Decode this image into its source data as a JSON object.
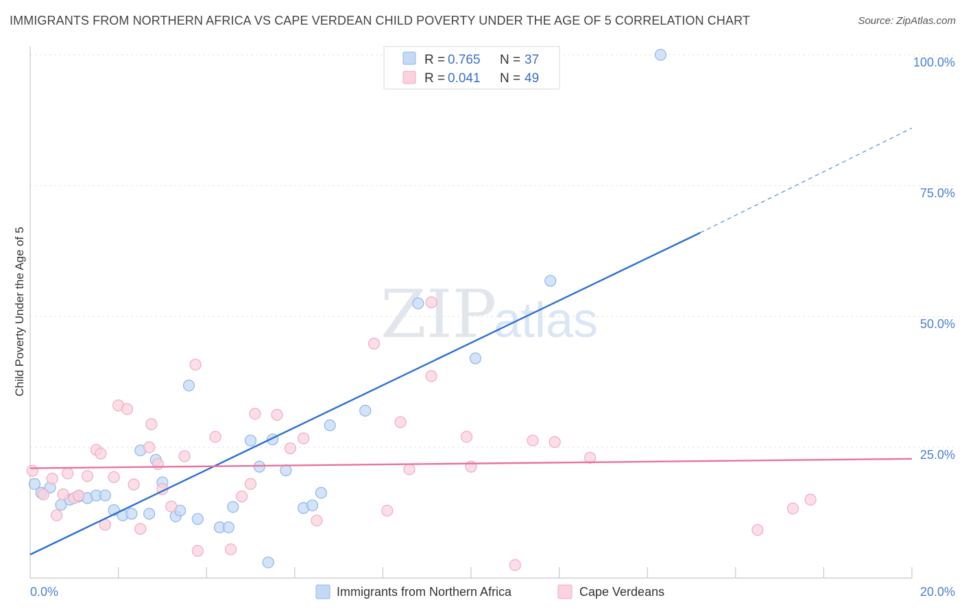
{
  "title": "IMMIGRANTS FROM NORTHERN AFRICA VS CAPE VERDEAN CHILD POVERTY UNDER THE AGE OF 5 CORRELATION CHART",
  "source": "Source: ZipAtlas.com",
  "watermark": {
    "zip": "ZIP",
    "atlas": "atlas"
  },
  "legend": {
    "r_label": "R =",
    "n_label": "N =",
    "rows": [
      {
        "r": "0.765",
        "n": "37"
      },
      {
        "r": "0.041",
        "n": "49"
      }
    ]
  },
  "chart_data": {
    "type": "scatter",
    "xlabel": "",
    "ylabel": "Child Poverty Under the Age of 5",
    "xlim": [
      0,
      20
    ],
    "ylim": [
      0,
      100
    ],
    "x_tick_labels": [
      "0.0%",
      "20.0%"
    ],
    "y_ticks": [
      {
        "value": 25,
        "label": "25.0%"
      },
      {
        "value": 50,
        "label": "50.0%"
      },
      {
        "value": 75,
        "label": "75.0%"
      },
      {
        "value": 100,
        "label": "100.0%"
      }
    ],
    "grid": true,
    "series": [
      {
        "name": "Immigrants from Northern Africa",
        "color": "#8fb6ea",
        "fill": "#c4d9f5",
        "line_color": "#2a6fd0",
        "trend": {
          "x0": 0,
          "y0": 4.5,
          "x1": 15.2,
          "y1": 66,
          "dash_to_x": 20,
          "dash_to_y": 86
        },
        "points": [
          [
            0.1,
            18.0
          ],
          [
            0.25,
            16.3
          ],
          [
            0.45,
            17.3
          ],
          [
            0.7,
            14.0
          ],
          [
            0.9,
            15.0
          ],
          [
            1.1,
            15.6
          ],
          [
            1.3,
            15.3
          ],
          [
            1.5,
            15.8
          ],
          [
            1.7,
            15.8
          ],
          [
            1.9,
            13.0
          ],
          [
            2.1,
            12.0
          ],
          [
            2.3,
            12.3
          ],
          [
            2.5,
            24.4
          ],
          [
            2.7,
            12.3
          ],
          [
            2.85,
            22.6
          ],
          [
            3.0,
            18.3
          ],
          [
            3.3,
            11.8
          ],
          [
            3.4,
            12.9
          ],
          [
            3.6,
            36.8
          ],
          [
            3.8,
            11.3
          ],
          [
            4.3,
            9.7
          ],
          [
            4.5,
            9.7
          ],
          [
            4.6,
            13.6
          ],
          [
            5.0,
            26.3
          ],
          [
            5.2,
            21.3
          ],
          [
            5.4,
            3.0
          ],
          [
            5.5,
            26.5
          ],
          [
            5.8,
            20.6
          ],
          [
            6.2,
            13.4
          ],
          [
            6.4,
            13.9
          ],
          [
            6.6,
            16.3
          ],
          [
            6.8,
            29.2
          ],
          [
            7.6,
            32.0
          ],
          [
            8.8,
            52.5
          ],
          [
            10.1,
            42.0
          ],
          [
            11.8,
            56.8
          ],
          [
            14.3,
            100.0
          ]
        ]
      },
      {
        "name": "Cape Verdeans",
        "color": "#f4a9c0",
        "fill": "#fad3de",
        "line_color": "#e8729a",
        "trend": {
          "x0": 0,
          "y0": 21.0,
          "x1": 20,
          "y1": 22.8
        },
        "points": [
          [
            0.05,
            20.5
          ],
          [
            0.3,
            16.0
          ],
          [
            0.5,
            19.0
          ],
          [
            0.6,
            12.0
          ],
          [
            0.75,
            16.0
          ],
          [
            0.85,
            20.0
          ],
          [
            1.0,
            15.3
          ],
          [
            1.1,
            15.8
          ],
          [
            1.3,
            19.5
          ],
          [
            1.5,
            24.5
          ],
          [
            1.6,
            23.8
          ],
          [
            1.7,
            10.2
          ],
          [
            1.9,
            19.3
          ],
          [
            2.0,
            33.0
          ],
          [
            2.2,
            32.3
          ],
          [
            2.35,
            17.9
          ],
          [
            2.5,
            9.4
          ],
          [
            2.7,
            25.0
          ],
          [
            2.75,
            29.4
          ],
          [
            2.9,
            21.8
          ],
          [
            3.0,
            17.0
          ],
          [
            3.2,
            13.7
          ],
          [
            3.5,
            23.3
          ],
          [
            3.75,
            40.8
          ],
          [
            3.8,
            5.2
          ],
          [
            4.2,
            27.0
          ],
          [
            4.55,
            5.5
          ],
          [
            4.8,
            15.6
          ],
          [
            5.0,
            18.0
          ],
          [
            5.1,
            31.4
          ],
          [
            5.6,
            31.2
          ],
          [
            5.9,
            24.8
          ],
          [
            6.2,
            26.7
          ],
          [
            6.5,
            11.0
          ],
          [
            7.8,
            44.8
          ],
          [
            8.1,
            12.9
          ],
          [
            8.4,
            29.8
          ],
          [
            8.6,
            20.8
          ],
          [
            9.1,
            38.6
          ],
          [
            9.1,
            52.7
          ],
          [
            9.9,
            27.0
          ],
          [
            10.0,
            21.3
          ],
          [
            11.0,
            2.5
          ],
          [
            11.4,
            26.3
          ],
          [
            11.9,
            26.0
          ],
          [
            12.7,
            23.0
          ],
          [
            16.5,
            9.2
          ],
          [
            17.3,
            13.3
          ],
          [
            17.7,
            15.0
          ]
        ]
      }
    ],
    "legend_placement": "top-center"
  }
}
